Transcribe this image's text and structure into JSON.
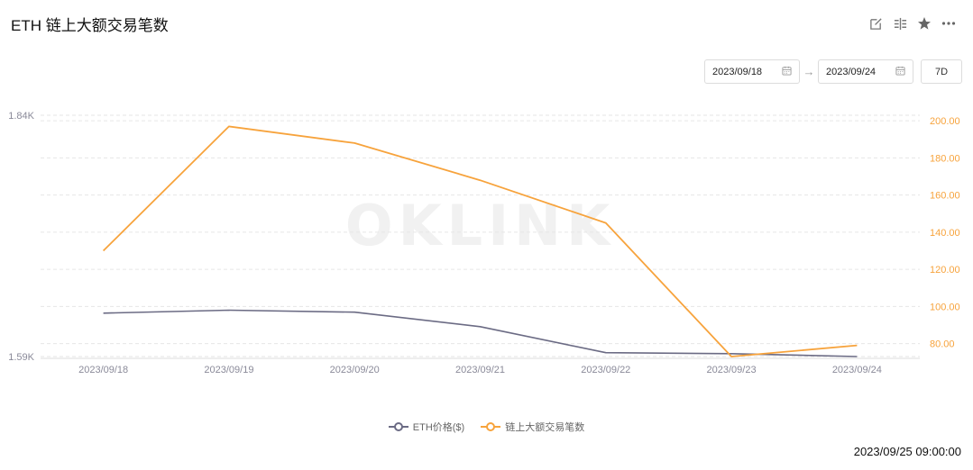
{
  "header": {
    "title": "ETH 链上大额交易笔数"
  },
  "toolbar": {
    "icons": [
      "edit-icon",
      "compare-icon",
      "star-icon",
      "more-icon"
    ]
  },
  "date_range": {
    "start": "2023/09/18",
    "end": "2023/09/24",
    "preset": "7D"
  },
  "watermark": "OKLINK",
  "footer": {
    "timestamp": "2023/09/25 09:00:00"
  },
  "colors": {
    "price": "#6b6b84",
    "count": "#f7a33c",
    "grid": "#e6e6e6",
    "left_axis_text": "#8a8a99",
    "right_axis_text": "#f7a33c"
  },
  "chart_data": {
    "type": "line",
    "title": "ETH 链上大额交易笔数",
    "categories": [
      "2023/09/18",
      "2023/09/19",
      "2023/09/20",
      "2023/09/21",
      "2023/09/22",
      "2023/09/23",
      "2023/09/24"
    ],
    "left_axis": {
      "ticks": [
        "1.84K",
        "1.59K"
      ],
      "ylim": [
        1590,
        1840
      ]
    },
    "right_axis": {
      "ticks": [
        "200.00",
        "180.00",
        "160.00",
        "140.00",
        "120.00",
        "100.00",
        "80.00"
      ],
      "ylim": [
        73,
        203
      ]
    },
    "series": [
      {
        "name": "ETH价格($)",
        "axis": "left",
        "values": [
          1635,
          1638,
          1636,
          1621,
          1594,
          1593,
          1590
        ]
      },
      {
        "name": "链上大额交易笔数",
        "axis": "right",
        "values": [
          130,
          197,
          188,
          168,
          145,
          73,
          79
        ]
      }
    ],
    "grid": true,
    "legend_position": "bottom"
  }
}
